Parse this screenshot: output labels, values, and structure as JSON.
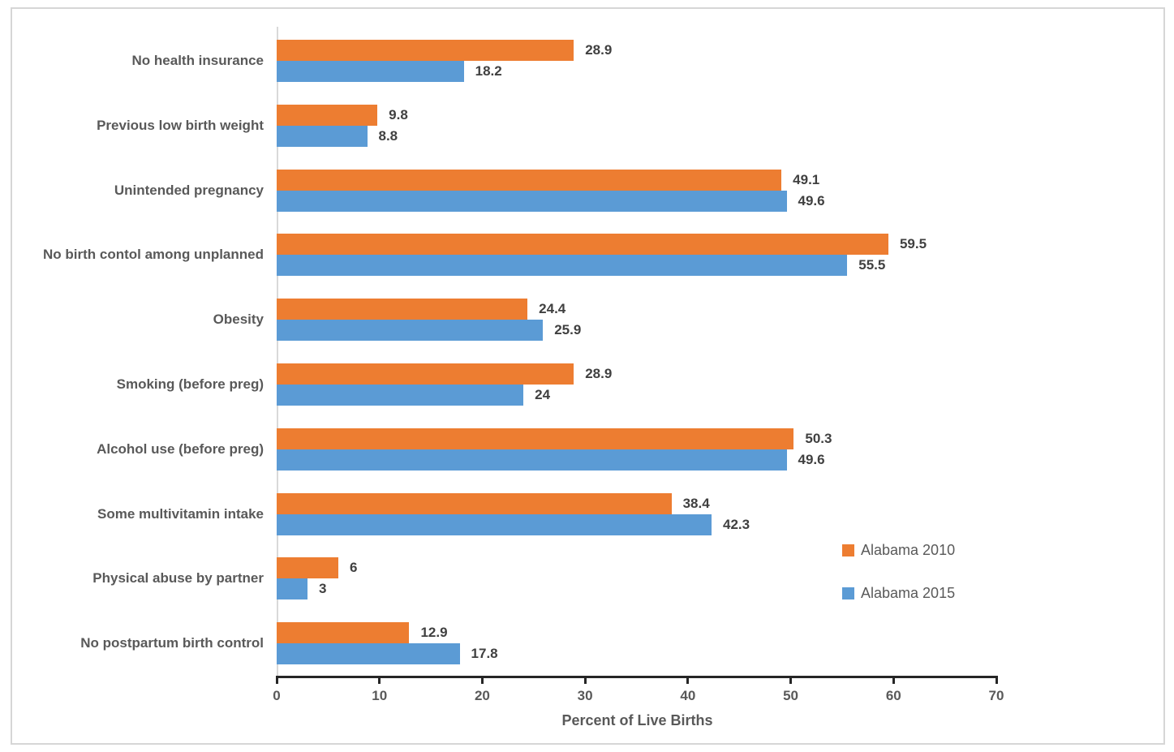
{
  "chart_data": {
    "type": "bar",
    "orientation": "horizontal",
    "categories": [
      "No health insurance",
      "Previous low birth weight",
      "Unintended pregnancy",
      "No birth contol among unplanned",
      "Obesity",
      "Smoking (before preg)",
      "Alcohol use (before preg)",
      "Some multivitamin intake",
      "Physical abuse by partner",
      "No postpartum birth control"
    ],
    "series": [
      {
        "name": "Alabama 2010",
        "color": "#ED7D31",
        "values": [
          28.9,
          9.8,
          49.1,
          59.5,
          24.4,
          28.9,
          50.3,
          38.4,
          6,
          12.9
        ]
      },
      {
        "name": "Alabama 2015",
        "color": "#5B9BD5",
        "values": [
          18.2,
          8.8,
          49.6,
          55.5,
          25.9,
          24,
          49.6,
          42.3,
          3,
          17.8
        ]
      }
    ],
    "title": "",
    "xlabel": "Percent of Live Births",
    "ylabel": "",
    "xlim": [
      0,
      70
    ],
    "xticks": [
      0,
      10,
      20,
      30,
      40,
      50,
      60,
      70
    ],
    "grid": false,
    "value_labels": true,
    "legend_position": "right-middle"
  },
  "style": {
    "axis_line_color": "#262626",
    "gridline_color": "#d9d9d9",
    "label_color": "#595959",
    "value_label_color": "#404040",
    "frame_border_color": "#d6d6d6",
    "background": "#ffffff"
  }
}
